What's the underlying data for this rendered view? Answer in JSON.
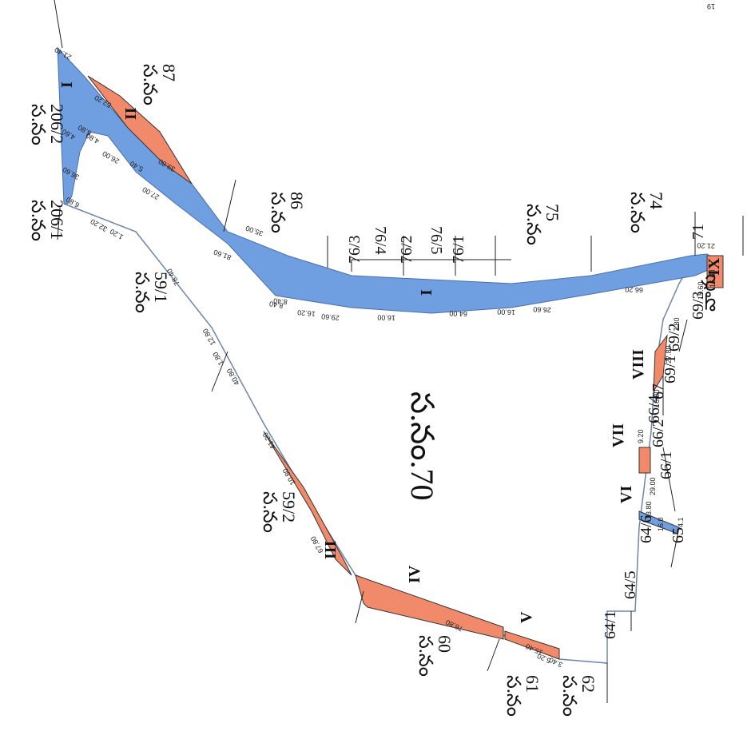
{
  "map": {
    "center_label": "స.నం.70",
    "corner_mark": "19",
    "colors": {
      "blue": "#6f9fe0",
      "orange": "#f08a6a",
      "line": "#6f86a8"
    },
    "survey_labels": [
      {
        "prefix": "స.నం",
        "number": "206/2"
      },
      {
        "prefix": "స.నం",
        "number": "87"
      },
      {
        "prefix": "స.నం",
        "number": "206/1"
      },
      {
        "prefix": "స.నం",
        "number": "59/1"
      },
      {
        "prefix": "స.నం",
        "number": "86"
      },
      {
        "prefix": "స.నం",
        "number": "75"
      },
      {
        "prefix": "స.నం",
        "number": "74"
      },
      {
        "prefix": "స.నం",
        "number": "59/2"
      },
      {
        "prefix": "స.నం",
        "number": "60"
      },
      {
        "prefix": "స.నం",
        "number": "61"
      },
      {
        "prefix": "స.నం",
        "number": "62"
      }
    ],
    "plot_labels": [
      "76/4",
      "76/5",
      "76/3",
      "76/2",
      "76/1",
      "71",
      "69/3",
      "69/2",
      "69/1",
      "67",
      "66/4",
      "66/2",
      "66/1",
      "65",
      "64/6",
      "64/5",
      "64/1"
    ],
    "roman_labels": [
      "I",
      "II",
      "I",
      "III",
      "IV",
      "V",
      "VI",
      "VII",
      "VIII",
      "IX"
    ],
    "measurements": [
      "21.40",
      "52.20",
      "6.80",
      "4.60",
      "4.80",
      "39.80",
      "26.00",
      "5.40",
      "36.60",
      "27.00",
      "6.80",
      "32.20",
      "1.20",
      "35.00",
      "81.60",
      "78.40",
      "8.40",
      "16.20",
      "8.40",
      "29.60",
      "16.00",
      "64.00",
      "16.00",
      "26.60",
      "66.20",
      "21.20",
      "12.80",
      "1.80",
      "40.80",
      "41.20",
      "10.80",
      "67.80",
      "76.80",
      "15.40",
      "5.20",
      "3.40",
      "15.60",
      "16.60",
      "7.80",
      "27.80",
      "16.00",
      "9.20",
      "29.00",
      "13.80",
      "16.0",
      "4.1"
    ],
    "other_text": [
      "వాగు"
    ]
  }
}
